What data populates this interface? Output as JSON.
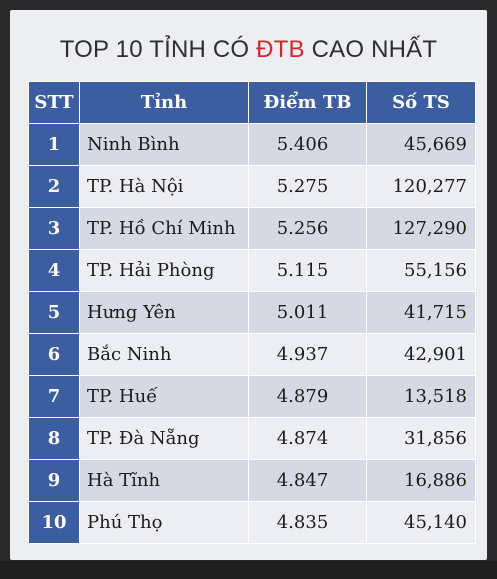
{
  "title": {
    "prefix": "TOP 10 TỈNH CÓ ",
    "highlight": "ĐTB",
    "suffix": " CAO NHẤT"
  },
  "colors": {
    "header_bg": "#3c5da0",
    "highlight": "#d9262b",
    "row_odd": "#d6d8e3",
    "row_even": "#eceef3"
  },
  "table": {
    "headers": [
      "STT",
      "Tỉnh",
      "Điểm TB",
      "Số TS"
    ],
    "rows": [
      {
        "stt": "1",
        "province": "Ninh Bình",
        "score": "5.406",
        "count": "45,669"
      },
      {
        "stt": "2",
        "province": "TP. Hà Nội",
        "score": "5.275",
        "count": "120,277"
      },
      {
        "stt": "3",
        "province": "TP. Hồ Chí Minh",
        "score": "5.256",
        "count": "127,290"
      },
      {
        "stt": "4",
        "province": "TP. Hải Phòng",
        "score": "5.115",
        "count": "55,156"
      },
      {
        "stt": "5",
        "province": "Hưng Yên",
        "score": "5.011",
        "count": "41,715"
      },
      {
        "stt": "6",
        "province": "Bắc Ninh",
        "score": "4.937",
        "count": "42,901"
      },
      {
        "stt": "7",
        "province": "TP. Huế",
        "score": "4.879",
        "count": "13,518"
      },
      {
        "stt": "8",
        "province": "TP. Đà Nẵng",
        "score": "4.874",
        "count": "31,856"
      },
      {
        "stt": "9",
        "province": "Hà Tĩnh",
        "score": "4.847",
        "count": "16,886"
      },
      {
        "stt": "10",
        "province": "Phú Thọ",
        "score": "4.835",
        "count": "45,140"
      }
    ]
  }
}
